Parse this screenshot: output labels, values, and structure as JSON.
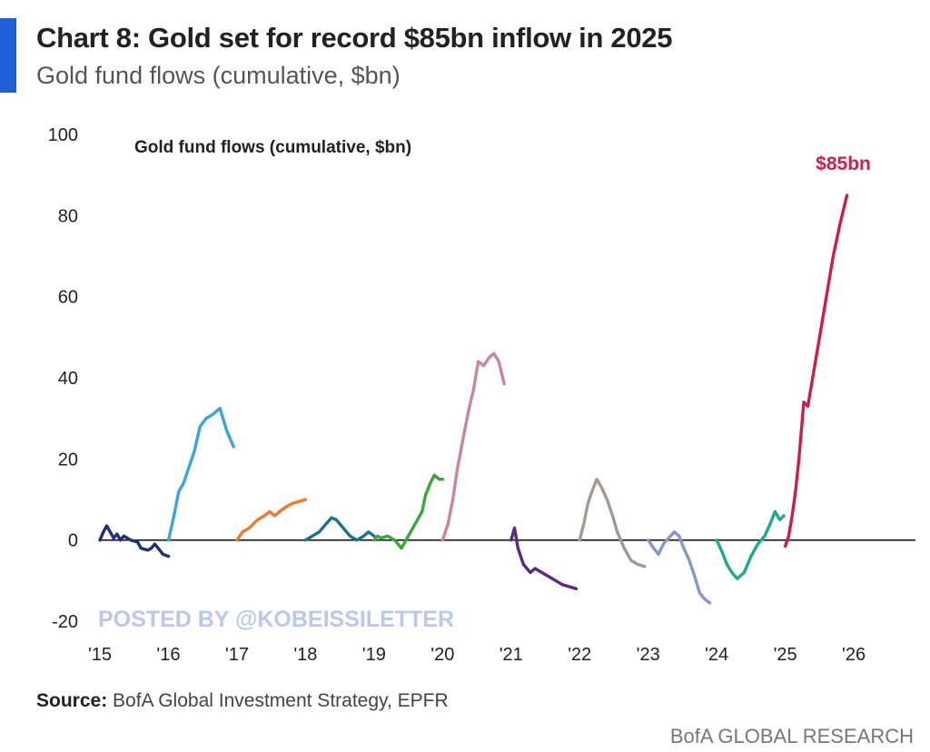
{
  "header": {
    "title": "Chart 8: Gold set for record $85bn inflow in 2025",
    "subtitle": "Gold fund flows (cumulative, $bn)"
  },
  "source": {
    "prefix": "Source:",
    "text": " BofA Global Investment Strategy, EPFR"
  },
  "footer": "BofA GLOBAL RESEARCH",
  "watermark": "POSTED BY @KOBEISSILETTER",
  "chart_data": {
    "type": "line",
    "title": "Gold fund flows (cumulative, $bn)",
    "xlabel": "",
    "ylabel": "",
    "xlim": [
      2015,
      2026.9
    ],
    "ylim": [
      -20,
      100
    ],
    "yticks": [
      -20,
      0,
      20,
      40,
      60,
      80,
      100
    ],
    "xticks": [
      {
        "x": 2015,
        "label": "'15"
      },
      {
        "x": 2016,
        "label": "'16"
      },
      {
        "x": 2017,
        "label": "'17"
      },
      {
        "x": 2018,
        "label": "'18"
      },
      {
        "x": 2019,
        "label": "'19"
      },
      {
        "x": 2020,
        "label": "'20"
      },
      {
        "x": 2021,
        "label": "'21"
      },
      {
        "x": 2022,
        "label": "'22"
      },
      {
        "x": 2023,
        "label": "'23"
      },
      {
        "x": 2024,
        "label": "'24"
      },
      {
        "x": 2025,
        "label": "'25"
      },
      {
        "x": 2026,
        "label": "'26"
      }
    ],
    "grid": false,
    "zero_line": true,
    "legend": "none",
    "end_label": {
      "text": "$85bn",
      "color": "#cc1e4a"
    },
    "series": [
      {
        "color": "#1f2f7a",
        "points": [
          [
            2015.0,
            0
          ],
          [
            2015.05,
            2
          ],
          [
            2015.1,
            3.5
          ],
          [
            2015.15,
            2
          ],
          [
            2015.2,
            0.5
          ],
          [
            2015.25,
            1.5
          ],
          [
            2015.3,
            0
          ],
          [
            2015.35,
            1
          ],
          [
            2015.45,
            0
          ],
          [
            2015.55,
            -0.5
          ],
          [
            2015.6,
            -2
          ],
          [
            2015.7,
            -2.5
          ],
          [
            2015.75,
            -2
          ],
          [
            2015.8,
            -1
          ],
          [
            2015.85,
            -2
          ],
          [
            2015.92,
            -3.5
          ],
          [
            2016.0,
            -4
          ]
        ]
      },
      {
        "color": "#3ea3e0",
        "points": [
          [
            2016.0,
            0
          ],
          [
            2016.08,
            6
          ],
          [
            2016.15,
            12
          ],
          [
            2016.22,
            14
          ],
          [
            2016.3,
            18
          ],
          [
            2016.38,
            22
          ],
          [
            2016.46,
            28
          ],
          [
            2016.55,
            30
          ],
          [
            2016.65,
            31
          ],
          [
            2016.75,
            32.5
          ],
          [
            2016.85,
            27
          ],
          [
            2016.95,
            23
          ]
        ]
      },
      {
        "color": "#f07a2a",
        "points": [
          [
            2017.0,
            0
          ],
          [
            2017.08,
            2
          ],
          [
            2017.18,
            3
          ],
          [
            2017.3,
            5
          ],
          [
            2017.4,
            6
          ],
          [
            2017.48,
            7
          ],
          [
            2017.55,
            6
          ],
          [
            2017.62,
            7
          ],
          [
            2017.7,
            8
          ],
          [
            2017.8,
            9
          ],
          [
            2017.9,
            9.5
          ],
          [
            2018.0,
            10
          ]
        ]
      },
      {
        "color": "#1e6f8e",
        "points": [
          [
            2018.0,
            0
          ],
          [
            2018.1,
            1
          ],
          [
            2018.2,
            2
          ],
          [
            2018.3,
            4
          ],
          [
            2018.38,
            5.5
          ],
          [
            2018.45,
            5
          ],
          [
            2018.55,
            3
          ],
          [
            2018.65,
            1
          ],
          [
            2018.75,
            0
          ],
          [
            2018.85,
            1
          ],
          [
            2018.92,
            2
          ],
          [
            2019.0,
            1
          ]
        ]
      },
      {
        "color": "#3aa83a",
        "points": [
          [
            2019.0,
            0
          ],
          [
            2019.05,
            1
          ],
          [
            2019.1,
            0.5
          ],
          [
            2019.2,
            1
          ],
          [
            2019.3,
            0
          ],
          [
            2019.4,
            -2
          ],
          [
            2019.5,
            1
          ],
          [
            2019.6,
            4
          ],
          [
            2019.7,
            7
          ],
          [
            2019.75,
            11
          ],
          [
            2019.82,
            14
          ],
          [
            2019.88,
            16
          ],
          [
            2019.95,
            15
          ],
          [
            2020.0,
            15
          ]
        ]
      },
      {
        "color": "#c9879d",
        "points": [
          [
            2020.0,
            0
          ],
          [
            2020.08,
            4
          ],
          [
            2020.15,
            10
          ],
          [
            2020.22,
            18
          ],
          [
            2020.3,
            25
          ],
          [
            2020.38,
            32
          ],
          [
            2020.45,
            37
          ],
          [
            2020.52,
            44
          ],
          [
            2020.6,
            43
          ],
          [
            2020.68,
            45
          ],
          [
            2020.75,
            46
          ],
          [
            2020.82,
            44
          ],
          [
            2020.9,
            38.5
          ]
        ]
      },
      {
        "color": "#5a2a80",
        "points": [
          [
            2021.0,
            0
          ],
          [
            2021.05,
            3
          ],
          [
            2021.1,
            -2
          ],
          [
            2021.18,
            -6
          ],
          [
            2021.28,
            -8
          ],
          [
            2021.35,
            -7
          ],
          [
            2021.45,
            -8
          ],
          [
            2021.55,
            -9
          ],
          [
            2021.65,
            -10
          ],
          [
            2021.75,
            -11
          ],
          [
            2021.85,
            -11.5
          ],
          [
            2021.95,
            -12
          ]
        ]
      },
      {
        "color": "#a39a96",
        "points": [
          [
            2022.0,
            0
          ],
          [
            2022.06,
            4
          ],
          [
            2022.12,
            9
          ],
          [
            2022.18,
            12
          ],
          [
            2022.25,
            15
          ],
          [
            2022.32,
            13
          ],
          [
            2022.4,
            10
          ],
          [
            2022.48,
            6
          ],
          [
            2022.55,
            2
          ],
          [
            2022.65,
            -2
          ],
          [
            2022.75,
            -5
          ],
          [
            2022.85,
            -6
          ],
          [
            2022.95,
            -6.5
          ]
        ]
      },
      {
        "color": "#8499c8",
        "points": [
          [
            2023.0,
            0
          ],
          [
            2023.08,
            -2
          ],
          [
            2023.15,
            -3.5
          ],
          [
            2023.22,
            -1
          ],
          [
            2023.3,
            0.5
          ],
          [
            2023.38,
            2
          ],
          [
            2023.45,
            1
          ],
          [
            2023.52,
            -2
          ],
          [
            2023.6,
            -5
          ],
          [
            2023.68,
            -9
          ],
          [
            2023.75,
            -13
          ],
          [
            2023.82,
            -14.5
          ],
          [
            2023.9,
            -15.5
          ]
        ]
      },
      {
        "color": "#1fa893",
        "points": [
          [
            2024.0,
            0
          ],
          [
            2024.08,
            -3
          ],
          [
            2024.15,
            -6
          ],
          [
            2024.22,
            -8
          ],
          [
            2024.3,
            -9.5
          ],
          [
            2024.4,
            -8
          ],
          [
            2024.5,
            -4
          ],
          [
            2024.6,
            -1
          ],
          [
            2024.7,
            1
          ],
          [
            2024.78,
            4
          ],
          [
            2024.85,
            7
          ],
          [
            2024.92,
            5
          ],
          [
            2024.98,
            6
          ]
        ]
      },
      {
        "color": "#cc1e4a",
        "points": [
          [
            2025.0,
            -1.5
          ],
          [
            2025.05,
            1
          ],
          [
            2025.1,
            6
          ],
          [
            2025.15,
            12
          ],
          [
            2025.2,
            20
          ],
          [
            2025.27,
            34
          ],
          [
            2025.33,
            33
          ],
          [
            2025.4,
            40
          ],
          [
            2025.5,
            50
          ],
          [
            2025.6,
            60
          ],
          [
            2025.7,
            70
          ],
          [
            2025.8,
            78
          ],
          [
            2025.9,
            85
          ]
        ]
      }
    ]
  }
}
